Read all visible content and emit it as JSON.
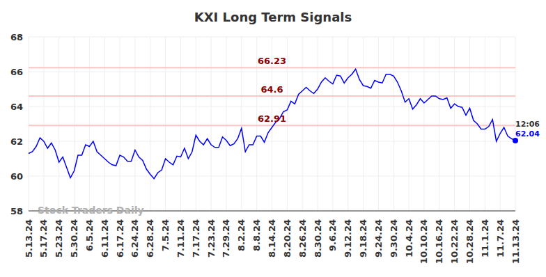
{
  "chart_data": {
    "type": "line",
    "title": "KXI Long Term Signals",
    "watermark": "Stock Traders Daily",
    "last_label": "12:06",
    "categories": [
      "5.13.24",
      null,
      null,
      null,
      "5.17.24",
      null,
      null,
      null,
      "5.23.24",
      null,
      null,
      null,
      "5.30.24",
      null,
      null,
      null,
      "6.5.24",
      null,
      null,
      null,
      "6.11.24",
      null,
      null,
      null,
      "6.17.24",
      null,
      null,
      null,
      "6.24.24",
      null,
      null,
      null,
      "6.28.24",
      null,
      null,
      null,
      "7.5.24",
      null,
      null,
      null,
      "7.11.24",
      null,
      null,
      null,
      "7.17.24",
      null,
      null,
      null,
      "7.23.24",
      null,
      null,
      null,
      "7.29.24",
      null,
      null,
      null,
      "8.2.24",
      null,
      null,
      null,
      "8.8.24",
      null,
      null,
      null,
      "8.14.24",
      null,
      null,
      null,
      "8.20.24",
      null,
      null,
      null,
      "8.26.24",
      null,
      null,
      null,
      "8.30.24",
      null,
      null,
      null,
      "9.6.24",
      null,
      null,
      null,
      "9.12.24",
      null,
      null,
      null,
      "9.18.24",
      null,
      null,
      null,
      "9.24.24",
      null,
      null,
      null,
      "9.30.24",
      null,
      null,
      null,
      "10.4.24",
      null,
      null,
      null,
      "10.10.24",
      null,
      null,
      null,
      "10.16.24",
      null,
      null,
      null,
      "10.22.24",
      null,
      null,
      null,
      "10.28.24",
      null,
      null,
      null,
      "11.1.24",
      null,
      null,
      null,
      "11.7.24",
      null,
      null,
      null,
      "11.13.24"
    ],
    "values": [
      61.3,
      61.4,
      61.7,
      62.2,
      62.0,
      61.6,
      61.9,
      61.5,
      60.8,
      61.1,
      60.5,
      59.9,
      60.3,
      61.2,
      61.2,
      61.8,
      61.7,
      62.0,
      61.4,
      61.2,
      61.0,
      60.8,
      60.65,
      60.6,
      61.2,
      61.1,
      60.85,
      60.85,
      61.5,
      61.1,
      60.9,
      60.4,
      60.1,
      59.85,
      60.2,
      60.35,
      61.0,
      60.8,
      60.65,
      61.15,
      61.1,
      61.6,
      61.0,
      61.4,
      62.35,
      62.0,
      61.8,
      62.15,
      61.8,
      61.65,
      61.65,
      62.25,
      62.05,
      61.75,
      61.85,
      62.15,
      62.75,
      61.4,
      61.8,
      61.8,
      62.3,
      62.3,
      61.95,
      62.5,
      62.8,
      63.1,
      63.3,
      63.7,
      63.8,
      64.3,
      64.15,
      64.7,
      64.9,
      65.1,
      64.9,
      64.75,
      65.0,
      65.4,
      65.65,
      65.45,
      65.3,
      65.8,
      65.75,
      65.35,
      65.65,
      65.85,
      66.15,
      65.55,
      65.2,
      65.15,
      65.05,
      65.5,
      65.4,
      65.35,
      65.85,
      65.85,
      65.75,
      65.4,
      64.9,
      64.25,
      64.45,
      63.85,
      64.1,
      64.45,
      64.2,
      64.4,
      64.6,
      64.6,
      64.45,
      64.4,
      64.5,
      63.9,
      64.15,
      64.0,
      63.95,
      63.5,
      63.9,
      63.2,
      63.0,
      62.7,
      62.7,
      62.85,
      63.25,
      62.0,
      62.45,
      62.8,
      62.3,
      62.15,
      62.04
    ],
    "color": "#0000ff",
    "signals": [
      66.23,
      64.6,
      62.91
    ],
    "ylim": [
      58,
      68
    ],
    "yticks": [
      58,
      60,
      62,
      64,
      66,
      68
    ],
    "grid": true
  }
}
